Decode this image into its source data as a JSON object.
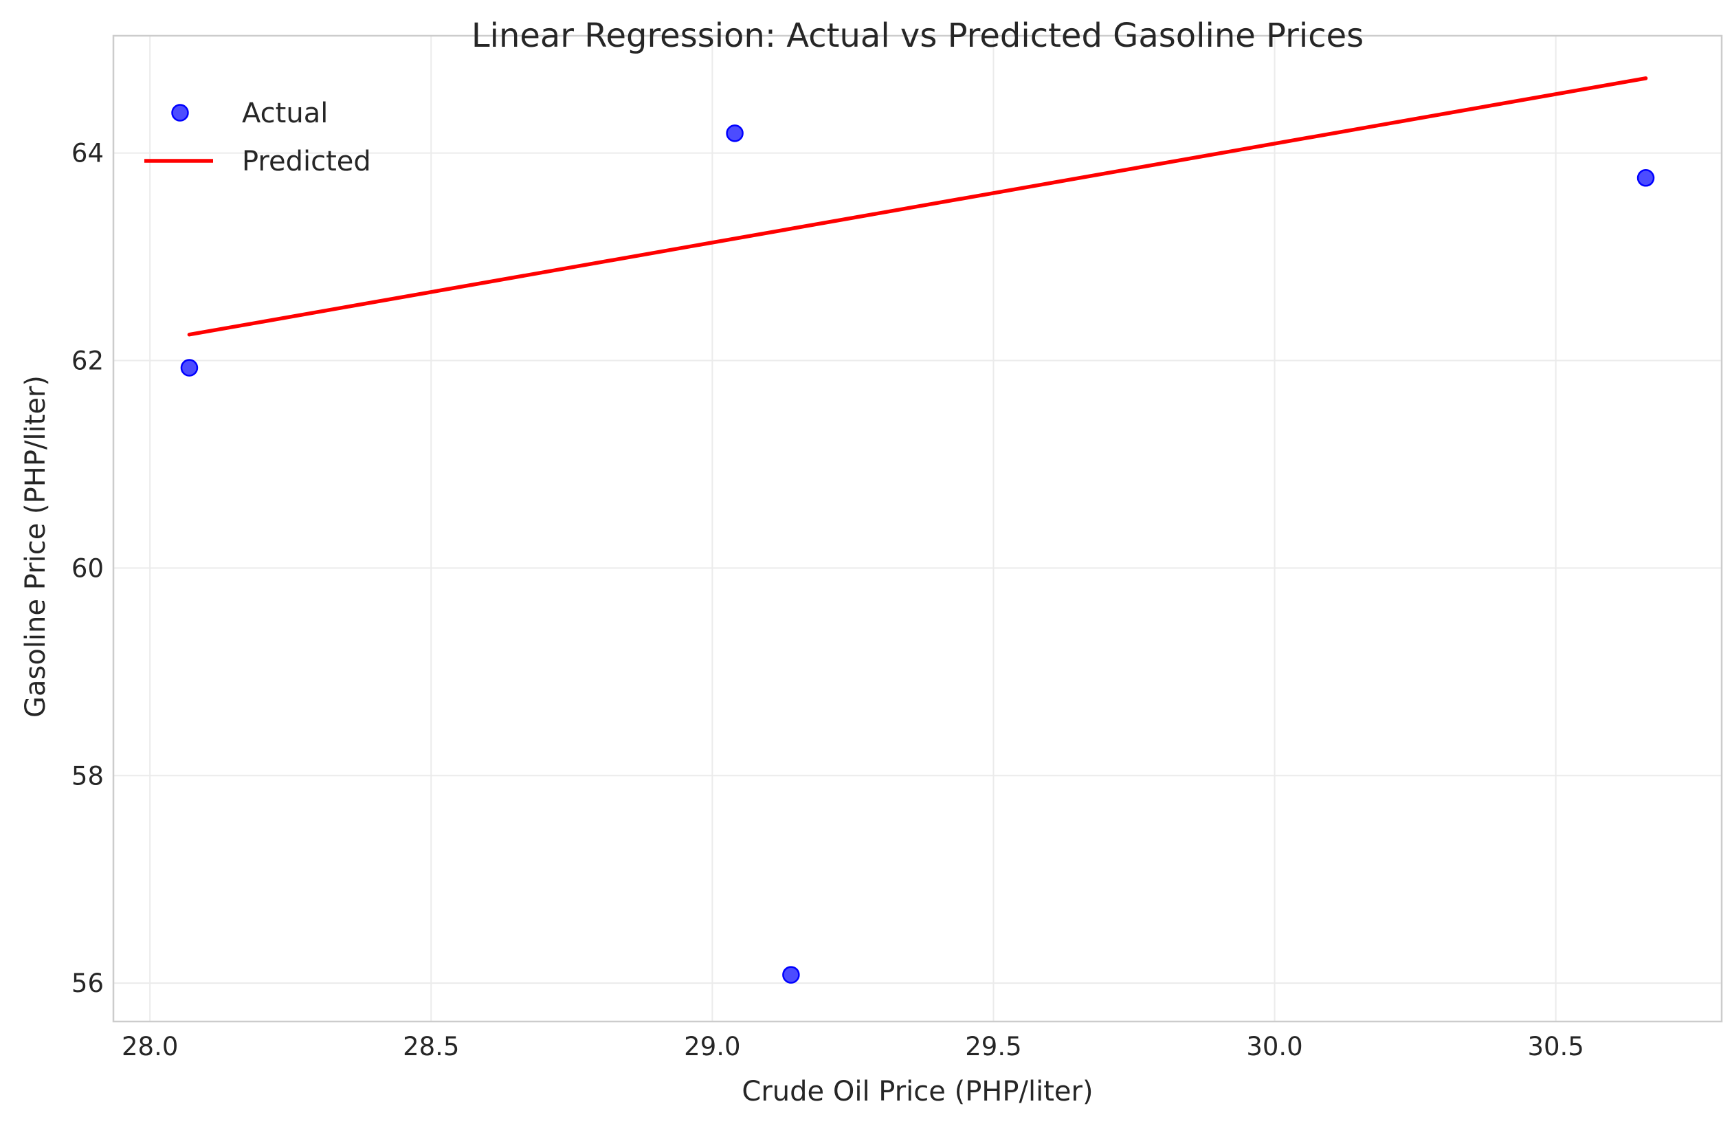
{
  "chart_data": {
    "type": "scatter",
    "title": "Linear Regression: Actual vs Predicted Gasoline Prices",
    "xlabel": "Crude Oil Price (PHP/liter)",
    "ylabel": "Gasoline Price (PHP/liter)",
    "xlim": [
      27.935,
      30.795
    ],
    "ylim": [
      55.63,
      65.13
    ],
    "xticks": [
      28.0,
      28.5,
      29.0,
      29.5,
      30.0,
      30.5
    ],
    "xtick_labels": [
      "28.0",
      "28.5",
      "29.0",
      "29.5",
      "30.0",
      "30.5"
    ],
    "yticks": [
      56,
      58,
      60,
      62,
      64
    ],
    "ytick_labels": [
      "56",
      "58",
      "60",
      "62",
      "64"
    ],
    "grid": true,
    "legend_position": "top-left",
    "series": [
      {
        "name": "Actual",
        "kind": "scatter",
        "color": "#0000ff",
        "points": [
          {
            "x": 28.07,
            "y": 61.93
          },
          {
            "x": 29.04,
            "y": 64.19
          },
          {
            "x": 29.14,
            "y": 56.08
          },
          {
            "x": 30.66,
            "y": 63.76
          }
        ]
      },
      {
        "name": "Predicted",
        "kind": "line",
        "color": "#ff0000",
        "points": [
          {
            "x": 28.07,
            "y": 62.25
          },
          {
            "x": 30.66,
            "y": 64.72
          }
        ]
      }
    ]
  }
}
